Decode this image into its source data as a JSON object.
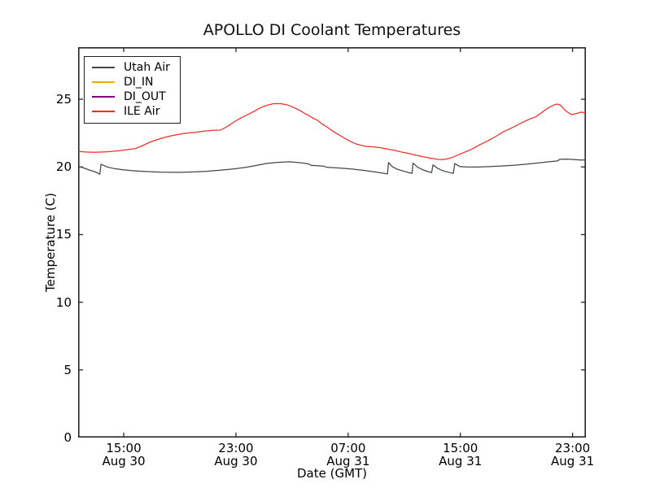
{
  "figure": {
    "background": "#ffffff",
    "axis_color": "#262626",
    "text_color": "#111111"
  },
  "chart_data": {
    "type": "line",
    "title": "APOLLO DI Coolant Temperatures",
    "xlabel": "Date (GMT)",
    "ylabel": "Temperature (C)",
    "grid": false,
    "legend_position": "upper left",
    "x_unit": "hours since Aug 30 00:00 GMT",
    "xlim": [
      11.75,
      47.95
    ],
    "ylim": [
      0,
      28.85
    ],
    "x_ticks": [
      {
        "hour": 15,
        "time": "15:00",
        "date": "Aug 30"
      },
      {
        "hour": 23,
        "time": "23:00",
        "date": "Aug 30"
      },
      {
        "hour": 31,
        "time": "07:00",
        "date": "Aug 31"
      },
      {
        "hour": 39,
        "time": "15:00",
        "date": "Aug 31"
      },
      {
        "hour": 47,
        "time": "23:00",
        "date": "Aug 31"
      }
    ],
    "y_ticks": [
      {
        "value": 0,
        "label": "0"
      },
      {
        "value": 5,
        "label": "5"
      },
      {
        "value": 10,
        "label": "10"
      },
      {
        "value": 15,
        "label": "15"
      },
      {
        "value": 20,
        "label": "20"
      },
      {
        "value": 25,
        "label": "25"
      }
    ],
    "series": [
      {
        "name": "Utah Air",
        "color": "#454545",
        "visible_in_plot": true,
        "points": [
          [
            11.75,
            20.05
          ],
          [
            12.2,
            19.9
          ],
          [
            12.7,
            19.72
          ],
          [
            13.05,
            19.6
          ],
          [
            13.22,
            19.5
          ],
          [
            13.3,
            19.47
          ],
          [
            13.38,
            20.2
          ],
          [
            13.8,
            20.0
          ],
          [
            14.3,
            19.88
          ],
          [
            14.9,
            19.8
          ],
          [
            15.6,
            19.72
          ],
          [
            16.6,
            19.66
          ],
          [
            17.6,
            19.62
          ],
          [
            18.9,
            19.6
          ],
          [
            20.0,
            19.63
          ],
          [
            20.9,
            19.68
          ],
          [
            21.8,
            19.75
          ],
          [
            22.8,
            19.85
          ],
          [
            23.7,
            19.97
          ],
          [
            24.5,
            20.12
          ],
          [
            25.2,
            20.26
          ],
          [
            25.9,
            20.33
          ],
          [
            26.4,
            20.36
          ],
          [
            26.8,
            20.38
          ],
          [
            27.4,
            20.33
          ],
          [
            27.9,
            20.27
          ],
          [
            28.2,
            20.22
          ],
          [
            28.35,
            20.12
          ],
          [
            28.9,
            20.08
          ],
          [
            29.3,
            20.05
          ],
          [
            29.45,
            19.98
          ],
          [
            30.4,
            19.92
          ],
          [
            31.3,
            19.84
          ],
          [
            32.2,
            19.74
          ],
          [
            33.0,
            19.62
          ],
          [
            33.6,
            19.52
          ],
          [
            33.8,
            19.48
          ],
          [
            33.88,
            20.33
          ],
          [
            34.15,
            20.02
          ],
          [
            34.5,
            19.83
          ],
          [
            35.0,
            19.67
          ],
          [
            35.35,
            19.57
          ],
          [
            35.55,
            19.53
          ],
          [
            35.63,
            20.28
          ],
          [
            35.95,
            19.98
          ],
          [
            36.35,
            19.78
          ],
          [
            36.7,
            19.65
          ],
          [
            36.95,
            19.58
          ],
          [
            37.05,
            20.15
          ],
          [
            37.4,
            19.88
          ],
          [
            37.8,
            19.7
          ],
          [
            38.25,
            19.58
          ],
          [
            38.5,
            19.53
          ],
          [
            38.6,
            20.25
          ],
          [
            38.95,
            20.03
          ],
          [
            39.4,
            20.0
          ],
          [
            40.2,
            19.99
          ],
          [
            41.0,
            20.02
          ],
          [
            41.9,
            20.07
          ],
          [
            42.8,
            20.12
          ],
          [
            43.7,
            20.2
          ],
          [
            44.6,
            20.3
          ],
          [
            45.3,
            20.38
          ],
          [
            45.9,
            20.44
          ],
          [
            46.1,
            20.56
          ],
          [
            46.6,
            20.58
          ],
          [
            47.1,
            20.55
          ],
          [
            47.55,
            20.51
          ],
          [
            47.93,
            20.52
          ]
        ]
      },
      {
        "name": "DI_IN",
        "color": "#ffa500",
        "visible_in_plot": false,
        "points": []
      },
      {
        "name": "DI_OUT",
        "color": "#800080",
        "visible_in_plot": false,
        "points": []
      },
      {
        "name": "ILE Air",
        "color": "#f22f27",
        "visible_in_plot": true,
        "points": [
          [
            11.75,
            21.15
          ],
          [
            12.3,
            21.1
          ],
          [
            12.9,
            21.08
          ],
          [
            13.5,
            21.1
          ],
          [
            14.1,
            21.14
          ],
          [
            14.7,
            21.2
          ],
          [
            15.3,
            21.28
          ],
          [
            15.8,
            21.35
          ],
          [
            16.3,
            21.55
          ],
          [
            16.9,
            21.85
          ],
          [
            17.5,
            22.05
          ],
          [
            17.9,
            22.18
          ],
          [
            18.4,
            22.3
          ],
          [
            18.9,
            22.4
          ],
          [
            19.5,
            22.5
          ],
          [
            20.1,
            22.56
          ],
          [
            20.7,
            22.64
          ],
          [
            21.3,
            22.7
          ],
          [
            21.9,
            22.72
          ],
          [
            22.4,
            23.0
          ],
          [
            22.9,
            23.35
          ],
          [
            23.5,
            23.7
          ],
          [
            24.1,
            24.0
          ],
          [
            24.7,
            24.35
          ],
          [
            25.2,
            24.55
          ],
          [
            25.7,
            24.68
          ],
          [
            26.2,
            24.67
          ],
          [
            26.6,
            24.6
          ],
          [
            27.0,
            24.45
          ],
          [
            27.3,
            24.3
          ],
          [
            27.6,
            24.15
          ],
          [
            27.9,
            23.95
          ],
          [
            28.2,
            23.8
          ],
          [
            28.5,
            23.6
          ],
          [
            28.8,
            23.45
          ],
          [
            29.1,
            23.2
          ],
          [
            29.5,
            22.95
          ],
          [
            29.9,
            22.65
          ],
          [
            30.3,
            22.4
          ],
          [
            30.7,
            22.15
          ],
          [
            31.1,
            21.92
          ],
          [
            31.5,
            21.72
          ],
          [
            31.9,
            21.6
          ],
          [
            32.3,
            21.52
          ],
          [
            32.8,
            21.48
          ],
          [
            33.3,
            21.42
          ],
          [
            33.8,
            21.32
          ],
          [
            34.3,
            21.22
          ],
          [
            34.9,
            21.08
          ],
          [
            35.5,
            20.95
          ],
          [
            36.1,
            20.8
          ],
          [
            36.6,
            20.7
          ],
          [
            37.0,
            20.62
          ],
          [
            37.4,
            20.56
          ],
          [
            37.8,
            20.55
          ],
          [
            38.2,
            20.63
          ],
          [
            38.65,
            20.8
          ],
          [
            39.2,
            21.05
          ],
          [
            39.8,
            21.3
          ],
          [
            40.4,
            21.65
          ],
          [
            41.0,
            21.95
          ],
          [
            41.6,
            22.3
          ],
          [
            42.1,
            22.62
          ],
          [
            42.8,
            22.95
          ],
          [
            43.4,
            23.28
          ],
          [
            43.9,
            23.52
          ],
          [
            44.4,
            23.72
          ],
          [
            44.8,
            24.02
          ],
          [
            45.2,
            24.32
          ],
          [
            45.6,
            24.55
          ],
          [
            45.9,
            24.65
          ],
          [
            46.15,
            24.55
          ],
          [
            46.4,
            24.25
          ],
          [
            46.7,
            24.0
          ],
          [
            46.95,
            23.87
          ],
          [
            47.3,
            23.95
          ],
          [
            47.6,
            24.05
          ],
          [
            47.93,
            24.0
          ]
        ]
      }
    ]
  }
}
